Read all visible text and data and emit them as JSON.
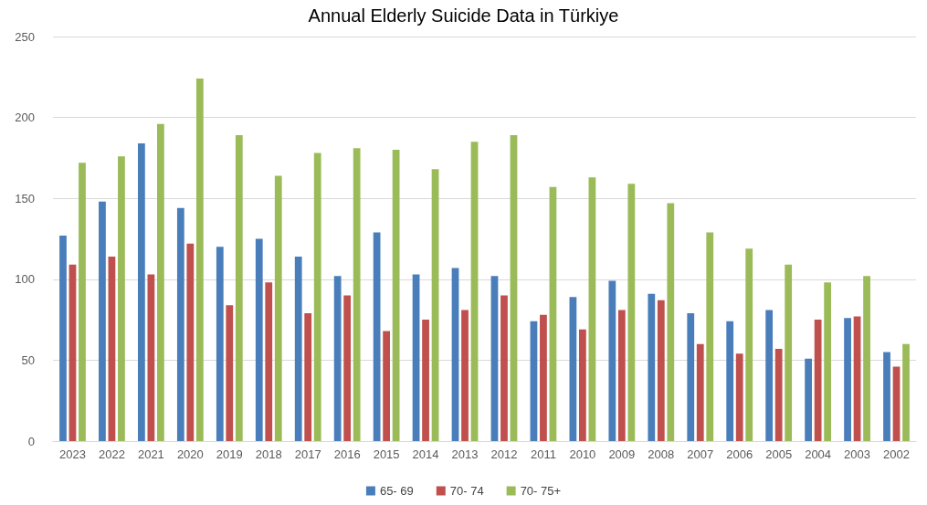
{
  "chart_data": {
    "type": "bar",
    "title": "Annual Elderly Suicide Data in Türkiye",
    "categories": [
      "2023",
      "2022",
      "2021",
      "2020",
      "2019",
      "2018",
      "2017",
      "2016",
      "2015",
      "2014",
      "2013",
      "2012",
      "2011",
      "2010",
      "2009",
      "2008",
      "2007",
      "2006",
      "2005",
      "2004",
      "2003",
      "2002"
    ],
    "series": [
      {
        "name": "65- 69",
        "color": "#4a7ebb",
        "values": [
          127,
          148,
          184,
          144,
          120,
          125,
          114,
          102,
          129,
          103,
          107,
          102,
          74,
          89,
          99,
          91,
          79,
          74,
          81,
          51,
          76,
          55
        ]
      },
      {
        "name": "70- 74",
        "color": "#c0504d",
        "values": [
          109,
          114,
          103,
          122,
          84,
          98,
          79,
          90,
          68,
          75,
          81,
          90,
          78,
          69,
          81,
          87,
          60,
          54,
          57,
          75,
          77,
          46
        ]
      },
      {
        "name": "70- 75+",
        "color": "#9bbb59",
        "values": [
          172,
          176,
          196,
          224,
          189,
          164,
          178,
          181,
          180,
          168,
          185,
          189,
          157,
          163,
          159,
          147,
          129,
          119,
          109,
          98,
          102,
          60
        ]
      }
    ],
    "ylim": [
      0,
      250
    ],
    "yticks": [
      0,
      50,
      100,
      150,
      200,
      250
    ],
    "grid": "y",
    "legend": "bottom"
  }
}
